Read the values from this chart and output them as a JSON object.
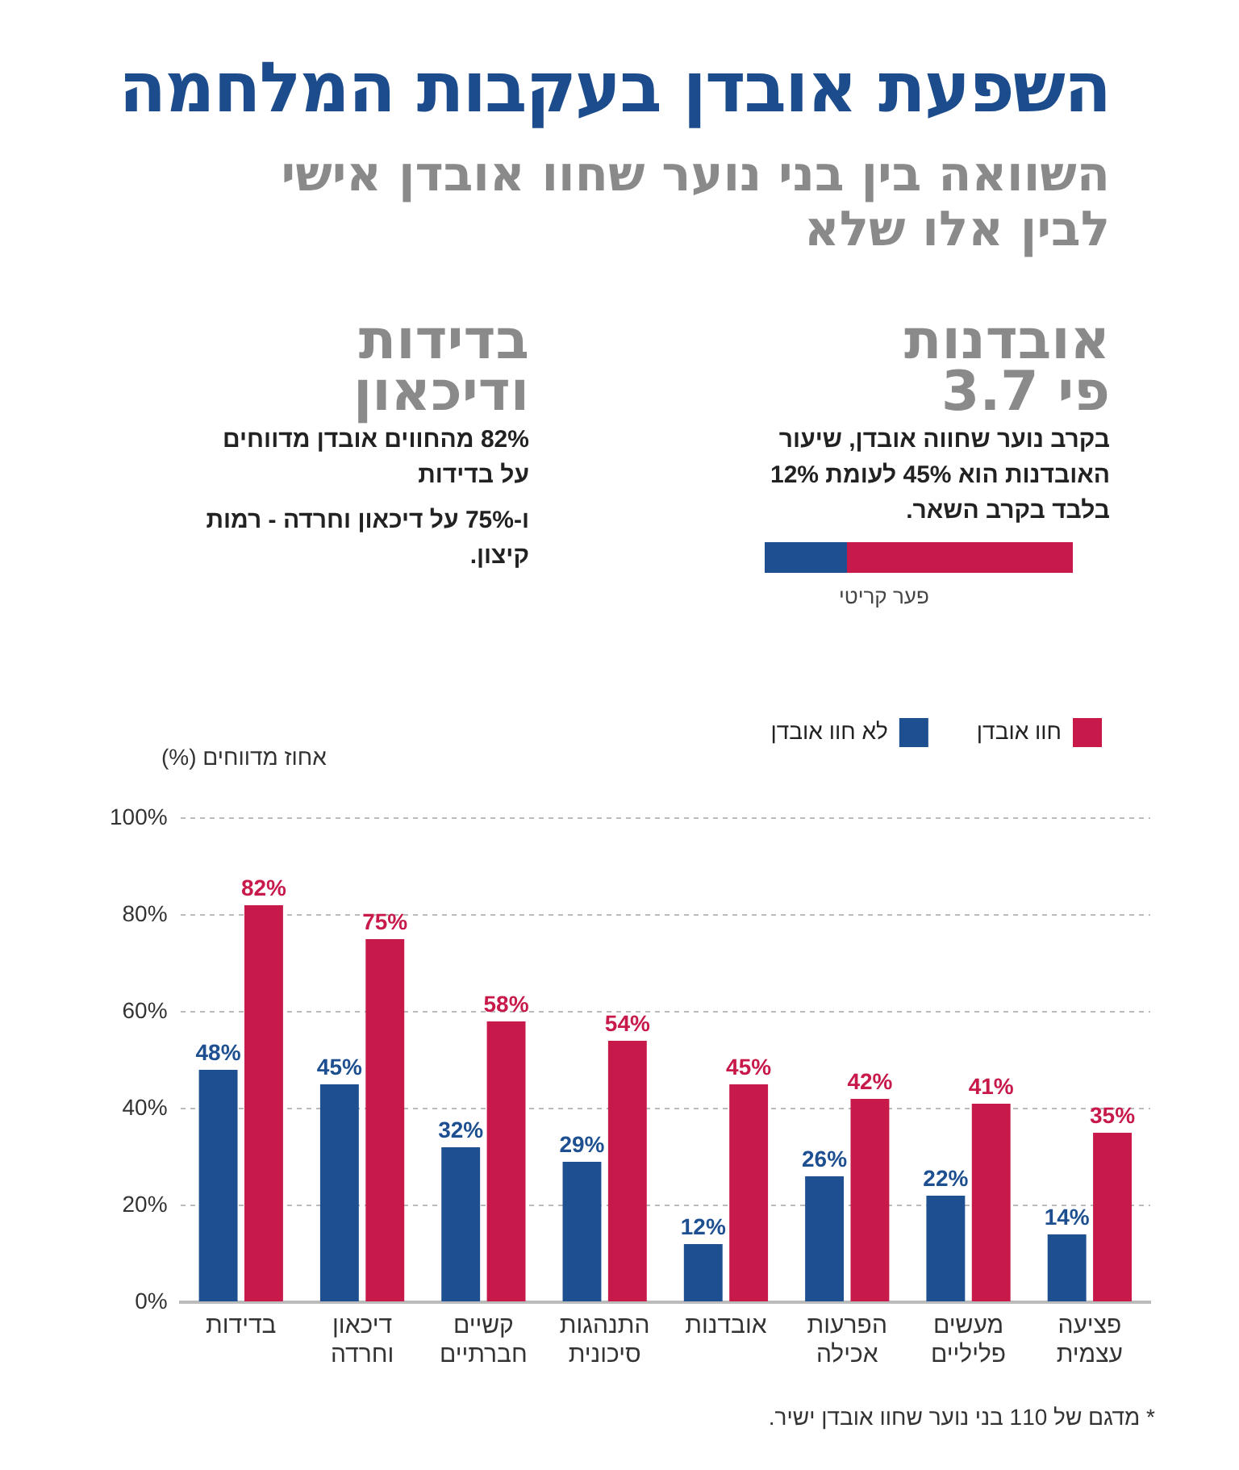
{
  "chart_data": {
    "type": "bar",
    "title": "השפעת אובדן בעקבות המלחמה",
    "subtitle": "השוואה בין בני נוער שחוו אובדן אישי לבין אלו שלא",
    "ylabel": "אחוז מדווחים (%)",
    "categories": [
      "בדידות",
      "דיכאון וחרדה",
      "קשיים חברתיים",
      "התנהגות סיכונית",
      "אובדנות",
      "הפרעות אכילה",
      "מעשים פליליים",
      "פציעה עצמית"
    ],
    "series": [
      {
        "name": "לא חוו אובדן",
        "color": "#1d4f91",
        "values": [
          48,
          45,
          32,
          29,
          12,
          26,
          22,
          14
        ],
        "value_labels": [
          "48%",
          "45%",
          "32%",
          "29%",
          "12%",
          "26%",
          "22%",
          "14%"
        ]
      },
      {
        "name": "חוו אובדן",
        "color": "#c8194b",
        "values": [
          82,
          75,
          58,
          54,
          45,
          42,
          41,
          35
        ],
        "value_labels": [
          "82%",
          "75%",
          "58%",
          "54%",
          "45%",
          "42%",
          "41%",
          "35%"
        ]
      }
    ],
    "ylim": [
      0,
      100
    ],
    "yticks": [
      {
        "value": 0,
        "label": "0%"
      },
      {
        "value": 20,
        "label": "20%"
      },
      {
        "value": 40,
        "label": "40%"
      },
      {
        "value": 60,
        "label": "60%"
      },
      {
        "value": 80,
        "label": "80%"
      },
      {
        "value": 100,
        "label": "100%"
      }
    ],
    "grid": "y",
    "legend": "top right",
    "annotations": [
      "אובדנות פי 3.7",
      "בקרב נוער שחווה אובדן, שיעור האובדנות הוא 45% לעומת 12% בלבד בקרב השאר.",
      "פער קריטי",
      "בדידות ודיכאון",
      "82% מהחווים אובדן מדווחים על בדידות",
      "ו-75% על דיכאון וחרדה - רמות קיצון.",
      "* מדגם של 110 בני נוער שחוו אובדן ישיר."
    ]
  }
}
